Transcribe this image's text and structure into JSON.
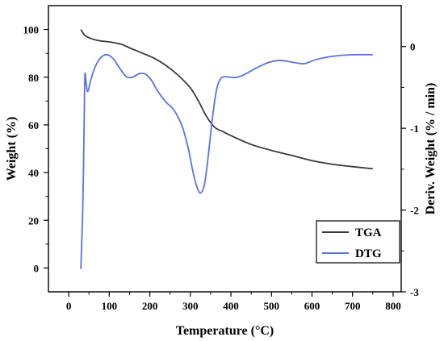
{
  "chart_data": {
    "type": "line",
    "xlabel": "Temperature (°C)",
    "ylabel": "Weight (%)",
    "y2label": "Deriv. Weight (% / min)",
    "xlim": [
      -50,
      820
    ],
    "ylim": [
      -10,
      110
    ],
    "y2lim": [
      -3,
      0.5
    ],
    "xticks": [
      0,
      100,
      200,
      300,
      400,
      500,
      600,
      700,
      800
    ],
    "yticks": [
      0,
      20,
      40,
      60,
      80,
      100
    ],
    "y2ticks": [
      -3,
      -2,
      -1,
      0
    ],
    "legend_position": "bottom-right",
    "series": [
      {
        "name": "TGA",
        "axis": "left",
        "color": "#3a3a3a",
        "x": [
          30,
          40,
          55,
          75,
          100,
          130,
          150,
          180,
          210,
          240,
          270,
          300,
          320,
          340,
          360,
          380,
          400,
          450,
          500,
          550,
          600,
          650,
          700,
          750
        ],
        "y": [
          100,
          97.5,
          96.2,
          95.3,
          94.8,
          93.8,
          92.3,
          90.2,
          88,
          84.9,
          80.8,
          75.5,
          70,
          63.5,
          59,
          57.2,
          55.5,
          51.8,
          49.3,
          47.2,
          45,
          43.5,
          42.5,
          41.6
        ]
      },
      {
        "name": "DTG",
        "axis": "right",
        "color": "#5a73e6",
        "x": [
          30,
          35,
          38,
          40,
          43,
          47,
          55,
          65,
          80,
          95,
          110,
          125,
          140,
          150,
          160,
          175,
          190,
          205,
          220,
          240,
          260,
          280,
          295,
          305,
          315,
          325,
          335,
          345,
          355,
          365,
          375,
          390,
          410,
          430,
          460,
          490,
          520,
          550,
          580,
          610,
          650,
          700,
          750
        ],
        "y": [
          -2.72,
          -1.9,
          -0.95,
          -0.35,
          -0.45,
          -0.55,
          -0.4,
          -0.25,
          -0.13,
          -0.1,
          -0.15,
          -0.26,
          -0.36,
          -0.38,
          -0.37,
          -0.33,
          -0.34,
          -0.42,
          -0.55,
          -0.68,
          -0.78,
          -0.98,
          -1.25,
          -1.5,
          -1.7,
          -1.79,
          -1.68,
          -1.3,
          -0.85,
          -0.52,
          -0.39,
          -0.37,
          -0.38,
          -0.35,
          -0.27,
          -0.2,
          -0.17,
          -0.19,
          -0.21,
          -0.16,
          -0.12,
          -0.1,
          -0.1
        ]
      }
    ]
  }
}
